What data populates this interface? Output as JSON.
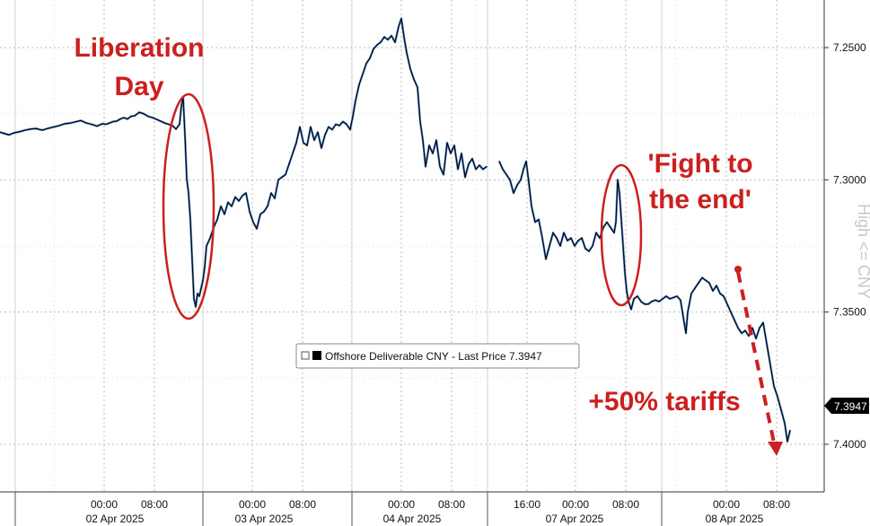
{
  "chart_data": {
    "type": "line",
    "title": "",
    "series": [
      {
        "name": "Offshore Deliverable CNY - Last Price 7.3947",
        "color": "#000000",
        "points": [
          [
            0,
            7.282
          ],
          [
            5,
            7.2825
          ],
          [
            10,
            7.283
          ],
          [
            16,
            7.2822
          ],
          [
            22,
            7.2818
          ],
          [
            28,
            7.2812
          ],
          [
            34,
            7.2808
          ],
          [
            40,
            7.2806
          ],
          [
            47,
            7.2812
          ],
          [
            54,
            7.2805
          ],
          [
            60,
            7.28
          ],
          [
            66,
            7.2795
          ],
          [
            72,
            7.2788
          ],
          [
            79,
            7.2785
          ],
          [
            85,
            7.278
          ],
          [
            90,
            7.2776
          ],
          [
            96,
            7.2785
          ],
          [
            102,
            7.279
          ],
          [
            108,
            7.2797
          ],
          [
            114,
            7.2788
          ],
          [
            118,
            7.279
          ],
          [
            122,
            7.2785
          ],
          [
            126,
            7.278
          ],
          [
            130,
            7.2778
          ],
          [
            134,
            7.277
          ],
          [
            138,
            7.2765
          ],
          [
            142,
            7.277
          ],
          [
            146,
            7.276
          ],
          [
            150,
            7.2758
          ],
          [
            155,
            7.2745
          ],
          [
            160,
            7.275
          ],
          [
            165,
            7.276
          ],
          [
            170,
            7.2765
          ],
          [
            175,
            7.2772
          ],
          [
            180,
            7.278
          ],
          [
            184,
            7.2786
          ],
          [
            188,
            7.279
          ],
          [
            192,
            7.2795
          ],
          [
            196,
            7.2808
          ],
          [
            200,
            7.279
          ],
          [
            202,
            7.272
          ],
          [
            204,
            7.269
          ],
          [
            206,
            7.283
          ],
          [
            208,
            7.2995
          ],
          [
            210,
            7.305
          ],
          [
            212,
            7.315
          ],
          [
            214,
            7.33
          ],
          [
            216,
            7.345
          ],
          [
            218,
            7.348
          ],
          [
            220,
            7.343
          ],
          [
            222,
            7.344
          ],
          [
            224,
            7.341
          ],
          [
            226,
            7.338
          ],
          [
            228,
            7.333
          ],
          [
            230,
            7.325
          ],
          [
            234,
            7.322
          ],
          [
            238,
            7.318
          ],
          [
            242,
            7.315
          ],
          [
            246,
            7.31
          ],
          [
            250,
            7.313
          ],
          [
            254,
            7.3085
          ],
          [
            258,
            7.31
          ],
          [
            262,
            7.3065
          ],
          [
            266,
            7.308
          ],
          [
            270,
            7.306
          ],
          [
            274,
            7.305
          ],
          [
            278,
            7.312
          ],
          [
            282,
            7.316
          ],
          [
            286,
            7.3185
          ],
          [
            290,
            7.313
          ],
          [
            294,
            7.312
          ],
          [
            298,
            7.31
          ],
          [
            302,
            7.305
          ],
          [
            306,
            7.307
          ],
          [
            310,
            7.3
          ],
          [
            314,
            7.299
          ],
          [
            318,
            7.298
          ],
          [
            322,
            7.294
          ],
          [
            326,
            7.29
          ],
          [
            330,
            7.286
          ],
          [
            334,
            7.28
          ],
          [
            338,
            7.286
          ],
          [
            342,
            7.287
          ],
          [
            346,
            7.28
          ],
          [
            350,
            7.285
          ],
          [
            354,
            7.282
          ],
          [
            358,
            7.288
          ],
          [
            362,
            7.283
          ],
          [
            366,
            7.28
          ],
          [
            370,
            7.281
          ],
          [
            374,
            7.279
          ],
          [
            378,
            7.2795
          ],
          [
            382,
            7.278
          ],
          [
            386,
            7.279
          ],
          [
            390,
            7.281
          ],
          [
            393,
            7.276
          ],
          [
            396,
            7.27
          ],
          [
            400,
            7.264
          ],
          [
            404,
            7.26
          ],
          [
            408,
            7.256
          ],
          [
            412,
            7.254
          ],
          [
            416,
            7.2505
          ],
          [
            420,
            7.249
          ],
          [
            424,
            7.248
          ],
          [
            428,
            7.246
          ],
          [
            432,
            7.247
          ],
          [
            436,
            7.2455
          ],
          [
            440,
            7.248
          ],
          [
            444,
            7.242
          ],
          [
            447,
            7.239
          ],
          [
            450,
            7.246
          ],
          [
            453,
            7.252
          ],
          [
            457,
            7.258
          ],
          [
            461,
            7.262
          ],
          [
            465,
            7.265
          ],
          [
            468,
            7.278
          ],
          [
            471,
            7.285
          ],
          [
            474,
            7.295
          ],
          [
            478,
            7.287
          ],
          [
            482,
            7.29
          ],
          [
            486,
            7.285
          ],
          [
            490,
            7.295
          ],
          [
            494,
            7.298
          ],
          [
            498,
            7.286
          ],
          [
            502,
            7.29
          ],
          [
            506,
            7.287
          ],
          [
            510,
            7.296
          ],
          [
            514,
            7.29
          ],
          [
            518,
            7.299
          ],
          [
            522,
            7.294
          ],
          [
            526,
            7.292
          ],
          [
            530,
            7.296
          ],
          [
            534,
            7.2945
          ],
          [
            538,
            7.296
          ],
          [
            542,
            7.295
          ],
          [
            556,
            7.293
          ],
          [
            560,
            7.296
          ],
          [
            564,
            7.298
          ],
          [
            568,
            7.3
          ],
          [
            572,
            7.305
          ],
          [
            576,
            7.302
          ],
          [
            580,
            7.3
          ],
          [
            583,
            7.296
          ],
          [
            586,
            7.293
          ],
          [
            589,
            7.301
          ],
          [
            592,
            7.31
          ],
          [
            596,
            7.316
          ],
          [
            600,
            7.315
          ],
          [
            604,
            7.322
          ],
          [
            608,
            7.33
          ],
          [
            612,
            7.325
          ],
          [
            616,
            7.32
          ],
          [
            620,
            7.322
          ],
          [
            624,
            7.325
          ],
          [
            628,
            7.32
          ],
          [
            632,
            7.323
          ],
          [
            636,
            7.322
          ],
          [
            640,
            7.325
          ],
          [
            644,
            7.323
          ],
          [
            648,
            7.322
          ],
          [
            652,
            7.326
          ],
          [
            656,
            7.327
          ],
          [
            660,
            7.325
          ],
          [
            664,
            7.32
          ],
          [
            668,
            7.322
          ],
          [
            672,
            7.318
          ],
          [
            676,
            7.316
          ],
          [
            680,
            7.318
          ],
          [
            684,
            7.32
          ],
          [
            686,
            7.316
          ],
          [
            688,
            7.3
          ],
          [
            690,
            7.305
          ],
          [
            692,
            7.315
          ],
          [
            694,
            7.325
          ],
          [
            696,
            7.335
          ],
          [
            698,
            7.342
          ],
          [
            700,
            7.346
          ],
          [
            703,
            7.349
          ],
          [
            706,
            7.345
          ],
          [
            710,
            7.344
          ],
          [
            714,
            7.346
          ],
          [
            718,
            7.347
          ],
          [
            722,
            7.347
          ],
          [
            726,
            7.346
          ],
          [
            730,
            7.3455
          ],
          [
            734,
            7.346
          ],
          [
            738,
            7.345
          ],
          [
            742,
            7.344
          ],
          [
            746,
            7.345
          ],
          [
            750,
            7.3445
          ],
          [
            754,
            7.344
          ],
          [
            758,
            7.3455
          ],
          [
            762,
            7.354
          ],
          [
            764,
            7.358
          ],
          [
            766,
            7.35
          ],
          [
            770,
            7.343
          ],
          [
            774,
            7.341
          ],
          [
            778,
            7.339
          ],
          [
            782,
            7.337
          ],
          [
            786,
            7.338
          ],
          [
            790,
            7.339
          ],
          [
            794,
            7.342
          ],
          [
            798,
            7.34
          ],
          [
            802,
            7.343
          ],
          [
            806,
            7.344
          ],
          [
            810,
            7.347
          ],
          [
            814,
            7.35
          ],
          [
            818,
            7.353
          ],
          [
            822,
            7.356
          ],
          [
            826,
            7.358
          ],
          [
            830,
            7.357
          ],
          [
            834,
            7.359
          ],
          [
            838,
            7.356
          ],
          [
            842,
            7.36
          ],
          [
            846,
            7.356
          ],
          [
            850,
            7.354
          ],
          [
            854,
            7.362
          ],
          [
            858,
            7.37
          ],
          [
            862,
            7.378
          ],
          [
            866,
            7.382
          ],
          [
            870,
            7.387
          ],
          [
            874,
            7.392
          ],
          [
            877,
            7.399
          ],
          [
            880,
            7.3947
          ]
        ]
      }
    ],
    "x_axis": {
      "time_ticks": [
        "00:00",
        "08:00",
        "00:00",
        "08:00",
        "00:00",
        "08:00",
        "16:00",
        "00:00",
        "08:00",
        "00:00",
        "08:00"
      ],
      "date_labels": [
        "02 Apr 2025",
        "03 Apr 2025",
        "04 Apr 2025",
        "07 Apr 2025",
        "08 Apr 2025"
      ]
    },
    "y_axis": {
      "ticks": [
        7.25,
        7.3,
        7.35,
        7.4
      ],
      "tick_labels": [
        "7.2500",
        "7.3000",
        "7.3500",
        "7.4000"
      ],
      "range": [
        7.232,
        7.418
      ],
      "inverted": true,
      "side": "right",
      "label": "High <= CNY"
    },
    "last_price_label": "7.3947",
    "legend": {
      "text": "Offshore Deliverable CNY - Last Price 7.3947",
      "placement": "center"
    },
    "grid": true,
    "annotations": {
      "liberation_day": [
        "Liberation",
        "Day"
      ],
      "fight": [
        "'Fight to",
        "the end'"
      ],
      "tariffs": "+50% tariffs"
    },
    "colors": {
      "annotation": "#cc1f1f",
      "line": "#000000",
      "grid": "#bbbbbb"
    }
  }
}
